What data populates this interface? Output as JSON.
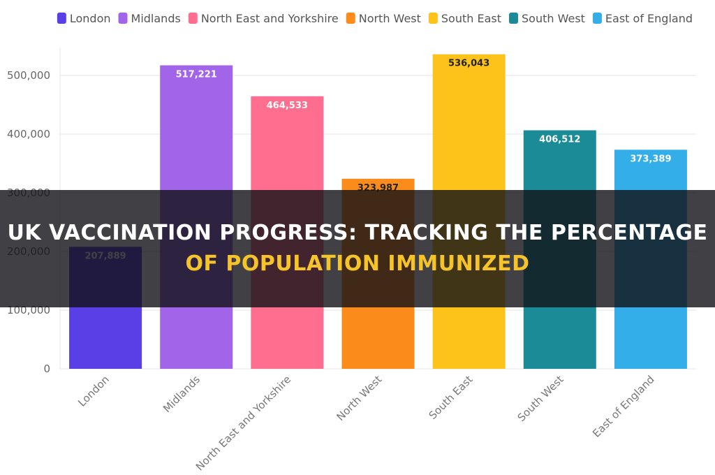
{
  "chart_data": {
    "type": "bar",
    "title": "",
    "xlabel": "",
    "ylabel": "",
    "categories": [
      "London",
      "Midlands",
      "North East and Yorkshire",
      "North West",
      "South East",
      "South West",
      "East of England"
    ],
    "values": [
      207889,
      517221,
      464533,
      323987,
      536043,
      406512,
      373389
    ],
    "value_labels": [
      "207,889",
      "517,221",
      "464,533",
      "323,987",
      "536,043",
      "406,512",
      "373,389"
    ],
    "colors": [
      "#5b3fe6",
      "#a264e8",
      "#ff6e8e",
      "#fb8c1c",
      "#fdc31a",
      "#1b8b98",
      "#33aee8"
    ],
    "value_label_colors": [
      "#ffffff",
      "#ffffff",
      "#ffffff",
      "#222222",
      "#222222",
      "#ffffff",
      "#ffffff"
    ],
    "ylim": [
      0,
      550000
    ],
    "yticks": [
      0,
      100000,
      200000,
      300000,
      400000,
      500000
    ],
    "ytick_labels": [
      "0",
      "100,000",
      "200,000",
      "300,000",
      "400,000",
      "500,000"
    ],
    "grid": true,
    "legend": {
      "placement": "top-right",
      "entries": [
        "London",
        "Midlands",
        "North East and Yorkshire",
        "North West",
        "South East",
        "South West",
        "East of England"
      ]
    }
  },
  "banner": {
    "line1": "UK Vaccination Progress: Tracking the Percentage",
    "line2": "of Population Immunized"
  }
}
